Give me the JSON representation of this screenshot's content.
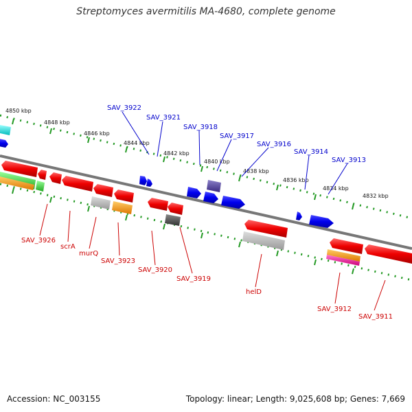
{
  "title": "Streptomyces avermitilis MA-4680, complete genome",
  "footer": {
    "accession": "Accession: NC_003155",
    "summary": "Topology: linear; Length: 9,025,608 bp; Genes: 7,669"
  },
  "ruler_top": [
    "4850 kbp",
    "4848 kbp",
    "4846 kbp",
    "4844 kbp",
    "4842 kbp",
    "4840 kbp",
    "4838 kbp",
    "4836 kbp",
    "4834 kbp",
    "4832 kbp"
  ],
  "labels_top": [
    "SAV_3922",
    "SAV_3921",
    "SAV_3918",
    "SAV_3917",
    "SAV_3916",
    "SAV_3914",
    "SAV_3913"
  ],
  "labels_bottom": [
    "SAV_3926",
    "scrA",
    "murQ",
    "SAV_3923",
    "SAV_3920",
    "SAV_3919",
    "helD",
    "SAV_3912",
    "SAV_3911"
  ],
  "colors": {
    "forward_strand_gene": "#0000ee",
    "reverse_strand_gene": "#ee0000",
    "backbone": "#777777",
    "ruler_ticks": "#229922"
  }
}
